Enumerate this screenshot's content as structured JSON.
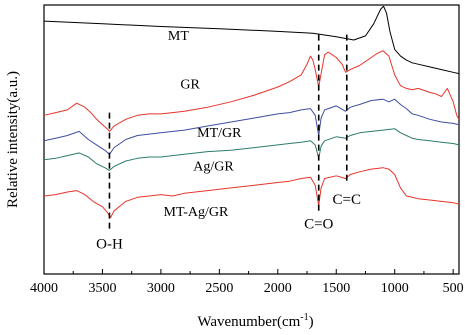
{
  "chart_data": {
    "type": "line",
    "xlabel": "Wavenumber(cm",
    "xlabel_sup": "-1",
    "xlabel_close": ")",
    "ylabel": "Relative intensity(a.u.)",
    "xlim": [
      4000,
      450
    ],
    "x_reversed": true,
    "xticks": [
      4000,
      3500,
      3000,
      2500,
      2000,
      1500,
      1000,
      500
    ],
    "ylim": [
      0,
      10
    ],
    "grid": false,
    "series": [
      {
        "name": "MT",
        "color": "#000000",
        "label_at": [
          2850,
          8.7
        ],
        "points": [
          [
            4000,
            9.4
          ],
          [
            3500,
            9.3
          ],
          [
            3000,
            9.2
          ],
          [
            2500,
            9.12
          ],
          [
            2000,
            9.02
          ],
          [
            1700,
            8.95
          ],
          [
            1500,
            8.82
          ],
          [
            1350,
            8.7
          ],
          [
            1250,
            8.85
          ],
          [
            1180,
            9.3
          ],
          [
            1120,
            9.85
          ],
          [
            1095,
            9.95
          ],
          [
            1070,
            9.7
          ],
          [
            1040,
            9.0
          ],
          [
            1000,
            8.35
          ],
          [
            950,
            8.1
          ],
          [
            900,
            7.95
          ],
          [
            850,
            7.85
          ],
          [
            800,
            7.8
          ],
          [
            700,
            7.7
          ],
          [
            600,
            7.6
          ],
          [
            500,
            7.5
          ],
          [
            450,
            7.45
          ]
        ]
      },
      {
        "name": "GR",
        "color": "#e8342a",
        "label_at": [
          2750,
          6.9
        ],
        "points": [
          [
            4000,
            5.9
          ],
          [
            3900,
            6.0
          ],
          [
            3800,
            6.1
          ],
          [
            3720,
            6.35
          ],
          [
            3650,
            6.2
          ],
          [
            3600,
            6.0
          ],
          [
            3550,
            5.75
          ],
          [
            3500,
            5.55
          ],
          [
            3460,
            5.4
          ],
          [
            3440,
            5.3
          ],
          [
            3400,
            5.5
          ],
          [
            3300,
            5.75
          ],
          [
            3200,
            5.9
          ],
          [
            3100,
            5.95
          ],
          [
            3000,
            5.95
          ],
          [
            2900,
            6.0
          ],
          [
            2800,
            6.05
          ],
          [
            2600,
            6.2
          ],
          [
            2400,
            6.4
          ],
          [
            2200,
            6.65
          ],
          [
            2000,
            6.95
          ],
          [
            1900,
            7.15
          ],
          [
            1800,
            7.4
          ],
          [
            1750,
            7.8
          ],
          [
            1720,
            8.1
          ],
          [
            1700,
            7.95
          ],
          [
            1680,
            7.6
          ],
          [
            1650,
            6.95
          ],
          [
            1630,
            7.45
          ],
          [
            1600,
            8.15
          ],
          [
            1570,
            8.25
          ],
          [
            1500,
            8.05
          ],
          [
            1450,
            7.8
          ],
          [
            1420,
            7.5
          ],
          [
            1380,
            7.6
          ],
          [
            1300,
            7.75
          ],
          [
            1200,
            8.05
          ],
          [
            1150,
            8.2
          ],
          [
            1100,
            8.3
          ],
          [
            1050,
            8.1
          ],
          [
            1000,
            7.4
          ],
          [
            950,
            7.0
          ],
          [
            900,
            6.9
          ],
          [
            850,
            6.85
          ],
          [
            800,
            6.9
          ],
          [
            700,
            6.75
          ],
          [
            650,
            6.7
          ],
          [
            600,
            6.6
          ],
          [
            550,
            6.9
          ],
          [
            500,
            6.4
          ],
          [
            470,
            5.9
          ],
          [
            450,
            5.75
          ]
        ]
      },
      {
        "name": "MT/GR",
        "color": "#3f4ea0",
        "label_at": [
          2500,
          5.1
        ],
        "points": [
          [
            4000,
            4.95
          ],
          [
            3900,
            5.05
          ],
          [
            3800,
            5.15
          ],
          [
            3700,
            5.3
          ],
          [
            3620,
            5.0
          ],
          [
            3550,
            4.8
          ],
          [
            3480,
            4.6
          ],
          [
            3440,
            4.45
          ],
          [
            3400,
            4.7
          ],
          [
            3300,
            5.0
          ],
          [
            3200,
            5.15
          ],
          [
            3100,
            5.2
          ],
          [
            3000,
            5.25
          ],
          [
            2800,
            5.35
          ],
          [
            2600,
            5.5
          ],
          [
            2400,
            5.65
          ],
          [
            2200,
            5.8
          ],
          [
            2000,
            5.95
          ],
          [
            1900,
            6.0
          ],
          [
            1800,
            6.1
          ],
          [
            1720,
            6.15
          ],
          [
            1680,
            5.9
          ],
          [
            1650,
            5.15
          ],
          [
            1630,
            5.8
          ],
          [
            1600,
            6.1
          ],
          [
            1500,
            6.25
          ],
          [
            1420,
            6.05
          ],
          [
            1380,
            6.2
          ],
          [
            1300,
            6.3
          ],
          [
            1200,
            6.45
          ],
          [
            1100,
            6.5
          ],
          [
            1050,
            6.4
          ],
          [
            1000,
            6.5
          ],
          [
            950,
            6.3
          ],
          [
            900,
            6.15
          ],
          [
            850,
            5.95
          ],
          [
            800,
            5.9
          ],
          [
            700,
            5.75
          ],
          [
            600,
            5.65
          ],
          [
            500,
            5.6
          ],
          [
            450,
            5.55
          ]
        ]
      },
      {
        "name": "Ag/GR",
        "color": "#2c7c6c",
        "label_at": [
          2550,
          3.85
        ],
        "points": [
          [
            4000,
            4.25
          ],
          [
            3900,
            4.3
          ],
          [
            3800,
            4.4
          ],
          [
            3700,
            4.5
          ],
          [
            3620,
            4.35
          ],
          [
            3550,
            4.1
          ],
          [
            3480,
            3.95
          ],
          [
            3440,
            3.85
          ],
          [
            3400,
            4.0
          ],
          [
            3300,
            4.2
          ],
          [
            3200,
            4.3
          ],
          [
            3100,
            4.35
          ],
          [
            3000,
            4.35
          ],
          [
            2800,
            4.45
          ],
          [
            2600,
            4.55
          ],
          [
            2400,
            4.6
          ],
          [
            2200,
            4.7
          ],
          [
            2000,
            4.8
          ],
          [
            1900,
            4.85
          ],
          [
            1800,
            4.9
          ],
          [
            1720,
            4.95
          ],
          [
            1680,
            4.8
          ],
          [
            1650,
            4.3
          ],
          [
            1630,
            4.75
          ],
          [
            1600,
            4.95
          ],
          [
            1500,
            5.1
          ],
          [
            1420,
            5.05
          ],
          [
            1380,
            5.15
          ],
          [
            1300,
            5.25
          ],
          [
            1200,
            5.3
          ],
          [
            1100,
            5.35
          ],
          [
            1000,
            5.4
          ],
          [
            950,
            5.25
          ],
          [
            900,
            5.15
          ],
          [
            850,
            5.05
          ],
          [
            800,
            5.0
          ],
          [
            700,
            4.95
          ],
          [
            600,
            4.9
          ],
          [
            500,
            4.85
          ],
          [
            450,
            4.8
          ]
        ]
      },
      {
        "name": "MT-Ag/GR",
        "color": "#e8342a",
        "label_at": [
          2700,
          2.15
        ],
        "points": [
          [
            4000,
            2.9
          ],
          [
            3900,
            2.95
          ],
          [
            3800,
            3.05
          ],
          [
            3720,
            3.1
          ],
          [
            3650,
            2.95
          ],
          [
            3580,
            2.7
          ],
          [
            3500,
            2.5
          ],
          [
            3460,
            2.3
          ],
          [
            3430,
            2.1
          ],
          [
            3400,
            2.35
          ],
          [
            3300,
            2.7
          ],
          [
            3200,
            2.85
          ],
          [
            3100,
            2.9
          ],
          [
            3000,
            2.95
          ],
          [
            2900,
            2.9
          ],
          [
            2800,
            3.0
          ],
          [
            2600,
            3.1
          ],
          [
            2400,
            3.2
          ],
          [
            2200,
            3.3
          ],
          [
            2000,
            3.4
          ],
          [
            1900,
            3.45
          ],
          [
            1800,
            3.55
          ],
          [
            1720,
            3.6
          ],
          [
            1680,
            3.3
          ],
          [
            1650,
            2.55
          ],
          [
            1630,
            3.2
          ],
          [
            1600,
            3.55
          ],
          [
            1500,
            3.65
          ],
          [
            1420,
            3.55
          ],
          [
            1380,
            3.7
          ],
          [
            1300,
            3.8
          ],
          [
            1200,
            3.9
          ],
          [
            1100,
            3.95
          ],
          [
            1050,
            3.9
          ],
          [
            1000,
            3.7
          ],
          [
            950,
            3.2
          ],
          [
            900,
            2.9
          ],
          [
            850,
            2.85
          ],
          [
            800,
            2.8
          ],
          [
            700,
            2.75
          ],
          [
            600,
            2.7
          ],
          [
            500,
            2.65
          ],
          [
            450,
            2.6
          ]
        ]
      }
    ],
    "annotations": [
      {
        "text": "O-H",
        "x": 3440,
        "y_top": 6.0,
        "y_bottom": 1.6,
        "label_y": 0.95
      },
      {
        "text": "C=O",
        "x": 1650,
        "y_top": 8.9,
        "y_bottom": 2.3,
        "label_y": 1.7
      },
      {
        "text": "C=C",
        "x": 1410,
        "y_top": 8.9,
        "y_bottom": 3.4,
        "label_y": 2.6
      }
    ]
  }
}
